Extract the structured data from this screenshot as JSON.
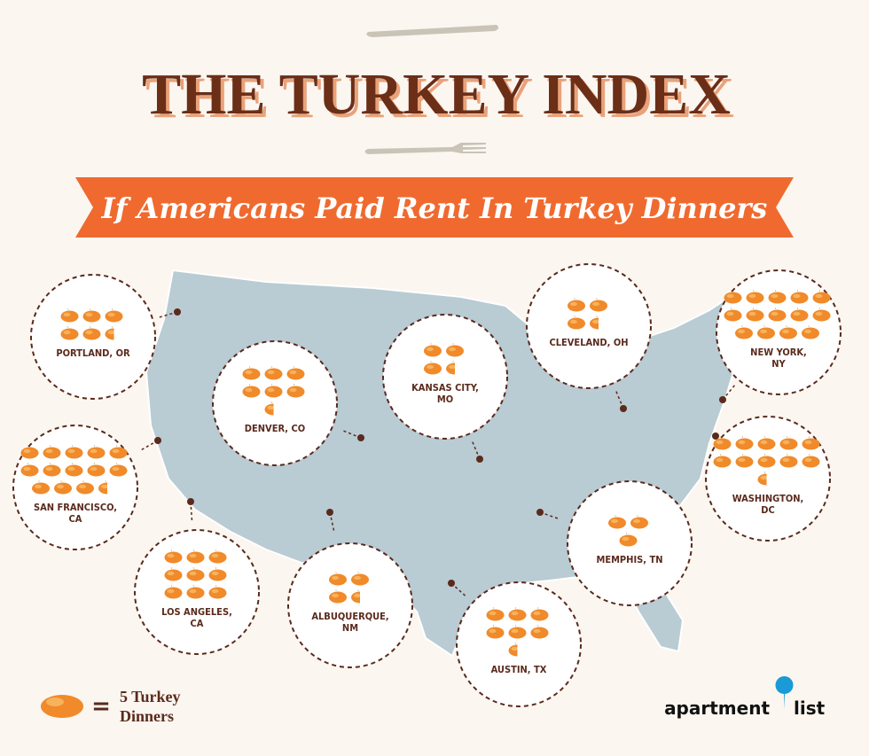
{
  "header": {
    "title": "THE TURKEY INDEX",
    "subtitle": "If Americans Paid Rent In Turkey Dinners"
  },
  "cities": [
    {
      "label": [
        "PORTLAND, OR"
      ],
      "turkeys": 5.5
    },
    {
      "label": [
        "SAN FRANCISCO,",
        "CA"
      ],
      "turkeys": 13.5
    },
    {
      "label": [
        "DENVER, CO"
      ],
      "turkeys": 6.5
    },
    {
      "label": [
        "KANSAS CITY,",
        "MO"
      ],
      "turkeys": 3.5
    },
    {
      "label": [
        "CLEVELAND, OH"
      ],
      "turkeys": 3.5
    },
    {
      "label": [
        "NEW YORK,",
        "NY"
      ],
      "turkeys": 14
    },
    {
      "label": [
        "WASHINGTON,",
        "DC"
      ],
      "turkeys": 10.5
    },
    {
      "label": [
        "MEMPHIS, TN"
      ],
      "turkeys": 3
    },
    {
      "label": [
        "LOS ANGELES,",
        "CA"
      ],
      "turkeys": 9
    },
    {
      "label": [
        "ALBUQUERQUE,",
        "NM"
      ],
      "turkeys": 3.5
    },
    {
      "label": [
        "AUSTIN, TX"
      ],
      "turkeys": 6.5
    }
  ],
  "legend": {
    "equals": "=",
    "lines": [
      "5 Turkey",
      "Dinners"
    ]
  },
  "logo": {
    "word1": "apartment",
    "word2": "list"
  }
}
